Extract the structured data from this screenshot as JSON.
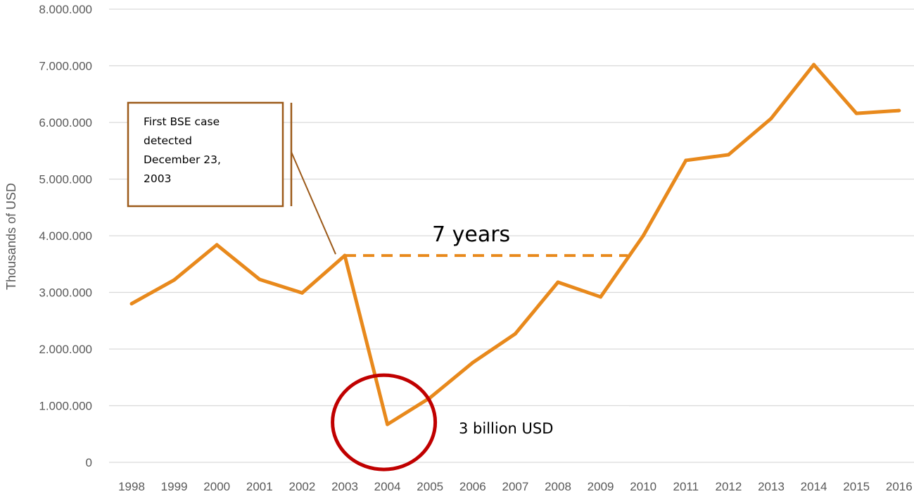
{
  "chart_data": {
    "type": "line",
    "title": "",
    "xlabel": "",
    "ylabel": "Thousands of USD",
    "ylim": [
      0,
      8000000
    ],
    "yticks": [
      0,
      1000000,
      2000000,
      3000000,
      4000000,
      5000000,
      6000000,
      7000000,
      8000000
    ],
    "ytick_labels": [
      "0",
      "1.000.000",
      "2.000.000",
      "3.000.000",
      "4.000.000",
      "5.000.000",
      "6.000.000",
      "7.000.000",
      "8.000.000"
    ],
    "grid": "horizontal",
    "legend": "none",
    "categories": [
      "1998",
      "1999",
      "2000",
      "2001",
      "2002",
      "2003",
      "2004",
      "2005",
      "2006",
      "2007",
      "2008",
      "2009",
      "2010",
      "2011",
      "2012",
      "2013",
      "2014",
      "2015",
      "2016"
    ],
    "series": [
      {
        "color": "#E8891C",
        "values": [
          2800000,
          3220000,
          3840000,
          3230000,
          2990000,
          3650000,
          670000,
          1140000,
          1760000,
          2270000,
          3180000,
          2920000,
          4000000,
          5330000,
          5430000,
          6070000,
          7020000,
          6160000,
          6210000
        ]
      }
    ],
    "annotations": {
      "callout_text": [
        "First BSE case",
        "detected",
        "December 23,",
        "2003"
      ],
      "gap_label": "7 years",
      "gap_level": 3650000,
      "gap_from": "2003",
      "gap_to": "2010",
      "loss_label": "3 billion USD",
      "circle_at": "2004"
    },
    "colors": {
      "line": "#E8891C",
      "grid": "#D9D9D9",
      "circle": "#C00000",
      "callout_border": "#9C5A1A",
      "callout_leader": "#9C5A1A"
    }
  }
}
